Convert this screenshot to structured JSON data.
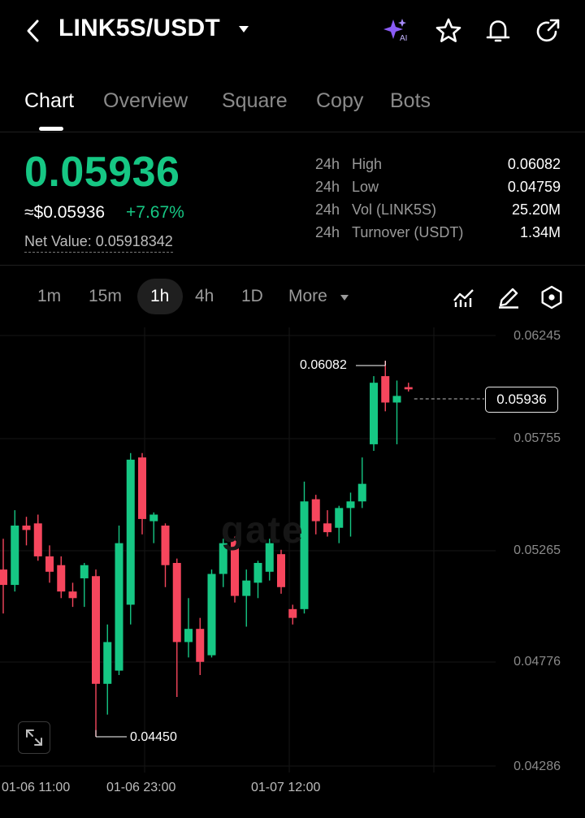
{
  "header": {
    "pair": "LINK5S/USDT",
    "icons": [
      "back-icon",
      "ai-sparkle-icon",
      "star-icon",
      "bell-icon",
      "share-icon"
    ],
    "ai_badge": "AI"
  },
  "tabs": [
    {
      "label": "Chart",
      "active": true
    },
    {
      "label": "Overview",
      "active": false
    },
    {
      "label": "Square",
      "active": false
    },
    {
      "label": "Copy",
      "active": false
    },
    {
      "label": "Bots",
      "active": false
    }
  ],
  "price": {
    "last": "0.05936",
    "usd": "≈$0.05936",
    "change": "+7.67%",
    "net_value": "Net Value: 0.05918342"
  },
  "stats": [
    {
      "prefix": "24h",
      "label": "High",
      "value": "0.06082"
    },
    {
      "prefix": "24h",
      "label": "Low",
      "value": "0.04759"
    },
    {
      "prefix": "24h",
      "label": "Vol (LINK5S)",
      "value": "25.20M"
    },
    {
      "prefix": "24h",
      "label": "Turnover (USDT)",
      "value": "1.34M"
    }
  ],
  "intervals": [
    {
      "label": "1m",
      "active": false
    },
    {
      "label": "15m",
      "active": false
    },
    {
      "label": "1h",
      "active": true
    },
    {
      "label": "4h",
      "active": false
    },
    {
      "label": "1D",
      "active": false
    },
    {
      "label": "More",
      "active": false
    }
  ],
  "colors": {
    "up": "#16c784",
    "down": "#f6465d",
    "accent_ai": "#8b5cf6"
  },
  "chart_data": {
    "type": "candlestick",
    "ylim": [
      0.04286,
      0.06245
    ],
    "y_ticks": [
      "0.06245",
      "0.05755",
      "0.05265",
      "0.04776",
      "0.04286"
    ],
    "x_ticks": [
      "01-06 11:00",
      "01-06 23:00",
      "01-07 12:00"
    ],
    "high_marker": "0.06082",
    "low_marker": "0.04450",
    "last_price_label": "0.05936",
    "candles": [
      {
        "o": 0.0518,
        "h": 0.0532,
        "l": 0.0498,
        "c": 0.0511
      },
      {
        "o": 0.0511,
        "h": 0.0545,
        "l": 0.0508,
        "c": 0.0538
      },
      {
        "o": 0.0538,
        "h": 0.0542,
        "l": 0.0529,
        "c": 0.0536
      },
      {
        "o": 0.0539,
        "h": 0.0543,
        "l": 0.0522,
        "c": 0.0524
      },
      {
        "o": 0.0524,
        "h": 0.0529,
        "l": 0.0512,
        "c": 0.0517
      },
      {
        "o": 0.052,
        "h": 0.0524,
        "l": 0.0505,
        "c": 0.0508
      },
      {
        "o": 0.0508,
        "h": 0.0512,
        "l": 0.0501,
        "c": 0.0505
      },
      {
        "o": 0.0514,
        "h": 0.0521,
        "l": 0.0501,
        "c": 0.052
      },
      {
        "o": 0.0515,
        "h": 0.0518,
        "l": 0.0442,
        "c": 0.0466
      },
      {
        "o": 0.0466,
        "h": 0.0493,
        "l": 0.0452,
        "c": 0.0485
      },
      {
        "o": 0.0472,
        "h": 0.0538,
        "l": 0.047,
        "c": 0.053
      },
      {
        "o": 0.0502,
        "h": 0.0571,
        "l": 0.0493,
        "c": 0.0568
      },
      {
        "o": 0.0569,
        "h": 0.0571,
        "l": 0.0534,
        "c": 0.0541
      },
      {
        "o": 0.054,
        "h": 0.0544,
        "l": 0.053,
        "c": 0.0543
      },
      {
        "o": 0.0538,
        "h": 0.0539,
        "l": 0.051,
        "c": 0.052
      },
      {
        "o": 0.0521,
        "h": 0.0523,
        "l": 0.046,
        "c": 0.0485
      },
      {
        "o": 0.0485,
        "h": 0.0505,
        "l": 0.0478,
        "c": 0.0491
      },
      {
        "o": 0.0491,
        "h": 0.0496,
        "l": 0.047,
        "c": 0.0476
      },
      {
        "o": 0.0479,
        "h": 0.0518,
        "l": 0.0478,
        "c": 0.0516
      },
      {
        "o": 0.0516,
        "h": 0.0532,
        "l": 0.051,
        "c": 0.053
      },
      {
        "o": 0.0531,
        "h": 0.0533,
        "l": 0.0503,
        "c": 0.0506
      },
      {
        "o": 0.0506,
        "h": 0.0518,
        "l": 0.0492,
        "c": 0.0513
      },
      {
        "o": 0.0512,
        "h": 0.0522,
        "l": 0.0505,
        "c": 0.0521
      },
      {
        "o": 0.0517,
        "h": 0.0532,
        "l": 0.0513,
        "c": 0.053
      },
      {
        "o": 0.0525,
        "h": 0.0527,
        "l": 0.0507,
        "c": 0.051
      },
      {
        "o": 0.05,
        "h": 0.0502,
        "l": 0.0493,
        "c": 0.0496
      },
      {
        "o": 0.05,
        "h": 0.0558,
        "l": 0.0498,
        "c": 0.0549
      },
      {
        "o": 0.055,
        "h": 0.0552,
        "l": 0.0534,
        "c": 0.054
      },
      {
        "o": 0.0539,
        "h": 0.0545,
        "l": 0.0533,
        "c": 0.0535
      },
      {
        "o": 0.0537,
        "h": 0.0547,
        "l": 0.053,
        "c": 0.0546
      },
      {
        "o": 0.0546,
        "h": 0.0553,
        "l": 0.0533,
        "c": 0.0549
      },
      {
        "o": 0.0549,
        "h": 0.0569,
        "l": 0.0546,
        "c": 0.0557
      },
      {
        "o": 0.0575,
        "h": 0.0606,
        "l": 0.0572,
        "c": 0.0603
      },
      {
        "o": 0.0606,
        "h": 0.0613,
        "l": 0.059,
        "c": 0.0594
      },
      {
        "o": 0.0594,
        "h": 0.0604,
        "l": 0.0575,
        "c": 0.0597
      },
      {
        "o": 0.0601,
        "h": 0.0603,
        "l": 0.0599,
        "c": 0.06
      }
    ]
  }
}
